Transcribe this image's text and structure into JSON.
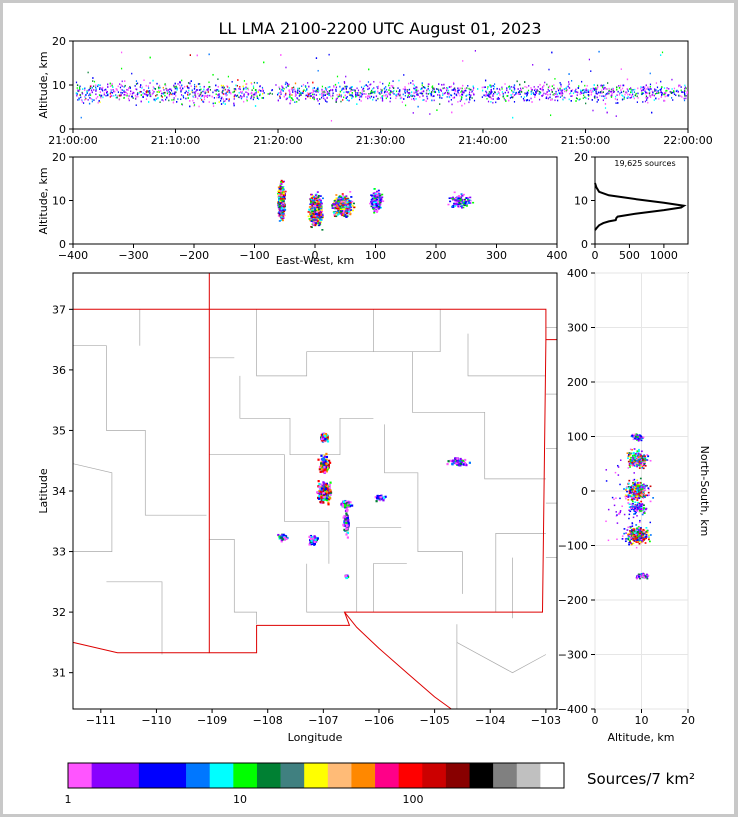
{
  "title": "LL LMA 2100-2200 UTC August 01, 2023",
  "units_label": "Sources/7 km²",
  "colorbar": {
    "colors": [
      "#ff55ff",
      "#8800ff",
      "#8800ff",
      "#0000ff",
      "#0000ff",
      "#0077ff",
      "#00ffff",
      "#00ff00",
      "#008033",
      "#408080",
      "#ffff00",
      "#ffbb77",
      "#ff8800",
      "#ff0088",
      "#ff0000",
      "#cc0000",
      "#880000",
      "#000000",
      "#808080",
      "#c0c0c0",
      "#ffffff"
    ],
    "ticks": [
      "1",
      "10",
      "100"
    ]
  },
  "chart_data": [
    {
      "id": "time-altitude",
      "type": "scatter",
      "xlabel": "",
      "ylabel": "Altitude, km",
      "ylim": [
        0,
        20
      ],
      "xlim": [
        "21:00:00",
        "22:00:00"
      ],
      "xticks": [
        "21:00:00",
        "21:10:00",
        "21:20:00",
        "21:30:00",
        "21:40:00",
        "21:50:00",
        "22:00:00"
      ],
      "yticks": [
        "0",
        "10",
        "20"
      ],
      "band": {
        "altitude_km": [
          2,
          14
        ],
        "dense_core_km": [
          5,
          12
        ]
      }
    },
    {
      "id": "eastwest-altitude",
      "type": "scatter",
      "xlabel": "East-West, km",
      "ylabel": "Altitude, km",
      "xlim": [
        -400,
        400
      ],
      "ylim": [
        0,
        20
      ],
      "xticks": [
        "−400",
        "−300",
        "−200",
        "−100",
        "0",
        "100",
        "200",
        "300",
        "400"
      ],
      "yticks": [
        "0",
        "10",
        "20"
      ],
      "clusters": [
        {
          "x": -57,
          "alt": 10
        },
        {
          "x": 0,
          "alt": 8
        },
        {
          "x": 45,
          "alt": 9
        },
        {
          "x": 100,
          "alt": 10
        },
        {
          "x": 240,
          "alt": 10
        }
      ]
    },
    {
      "id": "altitude-histogram",
      "type": "line",
      "annotation": "19,625 sources",
      "xlim": [
        0,
        1350
      ],
      "ylim": [
        0,
        20
      ],
      "xticks": [
        "0",
        "500",
        "1000"
      ],
      "yticks": [
        "0",
        "10",
        "20"
      ],
      "x": [
        0,
        30,
        60,
        120,
        200,
        300,
        310,
        330,
        600,
        1000,
        1250,
        1290,
        1000,
        600,
        200,
        60,
        20,
        0
      ],
      "y": [
        3.2,
        3.8,
        4.3,
        4.8,
        5.2,
        5.5,
        6.0,
        6.3,
        7.0,
        7.8,
        8.4,
        8.8,
        9.5,
        10.3,
        11.2,
        12.0,
        13.0,
        14.0
      ]
    },
    {
      "id": "plan-view",
      "type": "scatter",
      "xlabel": "Longitude",
      "ylabel": "Latitude",
      "xlim": [
        -111.5,
        -102.8
      ],
      "ylim": [
        30.4,
        37.6
      ],
      "xticks": [
        "−111",
        "−110",
        "−109",
        "−108",
        "−107",
        "−106",
        "−105",
        "−104",
        "−103"
      ],
      "yticks": [
        "31",
        "32",
        "33",
        "34",
        "35",
        "36",
        "37"
      ],
      "clusters": [
        {
          "lon": -107.0,
          "lat": 34.9
        },
        {
          "lon": -107.0,
          "lat": 34.45
        },
        {
          "lon": -107.0,
          "lat": 34.0
        },
        {
          "lon": -107.2,
          "lat": 33.2
        },
        {
          "lon": -106.6,
          "lat": 33.5
        },
        {
          "lon": -106.6,
          "lat": 33.8
        },
        {
          "lon": -106.0,
          "lat": 33.9
        },
        {
          "lon": -107.75,
          "lat": 33.25
        },
        {
          "lon": -104.6,
          "lat": 34.5
        },
        {
          "lon": -106.6,
          "lat": 32.6
        }
      ]
    },
    {
      "id": "altitude-northsouth",
      "type": "scatter",
      "xlabel": "Altitude, km",
      "ylabel": "North-South, km",
      "xlim": [
        0,
        20
      ],
      "ylim": [
        -400,
        400
      ],
      "xticks": [
        "0",
        "10",
        "20"
      ],
      "yticks": [
        "400",
        "300",
        "200",
        "100",
        "0",
        "−100",
        "−200",
        "−300",
        "−400"
      ],
      "clusters": [
        {
          "alt": 9,
          "ns": 100
        },
        {
          "alt": 9,
          "ns": 60
        },
        {
          "alt": 9,
          "ns": 0
        },
        {
          "alt": 9,
          "ns": -30
        },
        {
          "alt": 9,
          "ns": -80
        },
        {
          "alt": 10,
          "ns": -155
        }
      ]
    }
  ]
}
